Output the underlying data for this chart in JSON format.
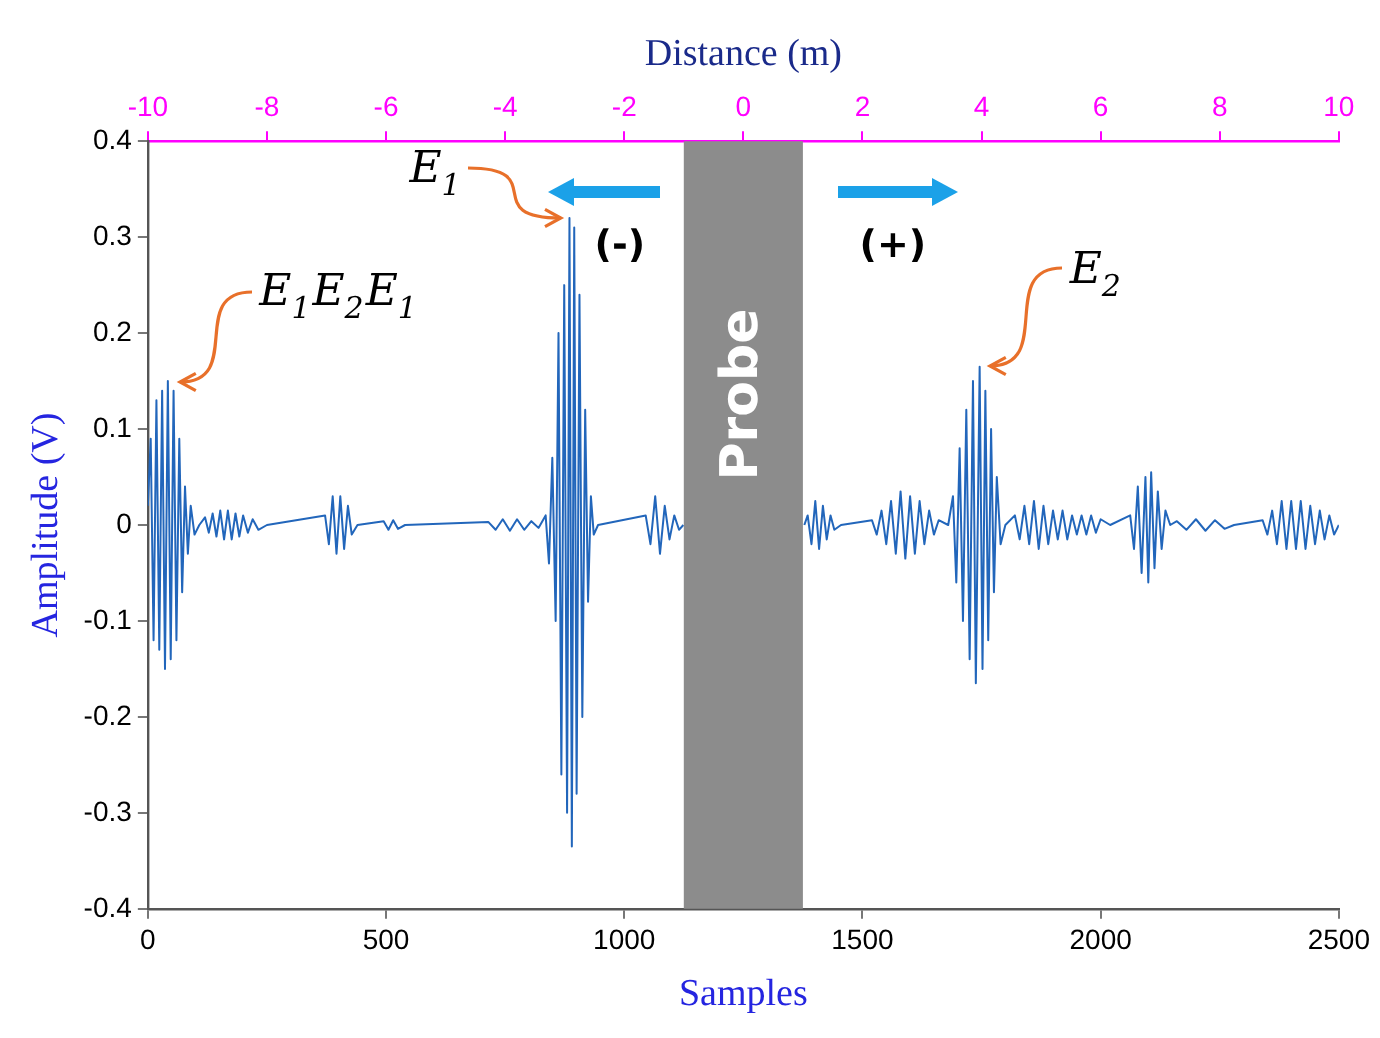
{
  "chart_data": {
    "type": "line",
    "xlabel": "Samples",
    "ylabel": "Amplitude (V)",
    "x2label": "Distance (m)",
    "xlim": [
      0,
      2500
    ],
    "xticks": [
      0,
      500,
      1000,
      1500,
      2000,
      2500
    ],
    "x2lim": [
      -10,
      10
    ],
    "x2ticks": [
      -10,
      -8,
      -6,
      -4,
      -2,
      0,
      2,
      4,
      6,
      8,
      10
    ],
    "ylim": [
      -0.4,
      0.4
    ],
    "yticks": [
      -0.4,
      -0.3,
      -0.2,
      -0.1,
      0,
      0.1,
      0.2,
      0.3,
      0.4
    ],
    "grid": false,
    "legend": false,
    "marker": "none",
    "line_style": "solid",
    "bands": [
      {
        "axis": "x",
        "from": 1125,
        "to": 1375,
        "label": "Probe",
        "color": "#8c8c8c"
      }
    ],
    "annotations": [
      {
        "text": "E$_{1}$E$_{2}$E$_{1}$",
        "x": 45,
        "y": 0.15
      },
      {
        "text": "E$_{1}$",
        "x": 885,
        "y": 0.32
      },
      {
        "text": "E$_{2}$",
        "x": 1746,
        "y": 0.165
      },
      "(-)",
      "(+)"
    ],
    "series": [
      {
        "color": "#2266bb",
        "x": [
          0,
          6,
          12,
          18,
          24,
          30,
          36,
          42,
          48,
          54,
          60,
          66,
          72,
          78,
          84,
          90,
          98,
          108,
          120,
          128,
          136,
          144,
          152,
          160,
          168,
          176,
          184,
          192,
          200,
          210,
          220,
          232,
          250,
          372,
          380,
          388,
          396,
          404,
          412,
          420,
          428,
          440,
          495,
          505,
          515,
          525,
          540,
          715,
          730,
          745,
          760,
          775,
          790,
          805,
          820,
          835,
          842,
          849,
          856,
          862,
          868,
          874,
          880,
          885,
          890,
          895,
          900,
          906,
          912,
          918,
          924,
          930,
          936,
          945,
          1045,
          1055,
          1065,
          1075,
          1085,
          1095,
          1105,
          1115,
          1124,
          1250,
          1378,
          1385,
          1393,
          1401,
          1409,
          1417,
          1425,
          1433,
          1441,
          1455,
          1520,
          1530,
          1540,
          1550,
          1560,
          1570,
          1580,
          1590,
          1600,
          1610,
          1620,
          1630,
          1640,
          1650,
          1660,
          1680,
          1690,
          1697,
          1704,
          1711,
          1718,
          1725,
          1732,
          1738,
          1746,
          1752,
          1758,
          1764,
          1770,
          1776,
          1782,
          1790,
          1800,
          1820,
          1830,
          1840,
          1850,
          1860,
          1870,
          1880,
          1890,
          1900,
          1910,
          1920,
          1930,
          1940,
          1950,
          1960,
          1970,
          1980,
          1990,
          2000,
          2020,
          2062,
          2070,
          2078,
          2086,
          2094,
          2100,
          2106,
          2113,
          2120,
          2128,
          2136,
          2146,
          2160,
          2180,
          2200,
          2220,
          2240,
          2260,
          2280,
          2340,
          2350,
          2360,
          2370,
          2380,
          2390,
          2400,
          2410,
          2420,
          2430,
          2440,
          2450,
          2460,
          2470,
          2480,
          2490,
          2500
        ],
        "values": [
          0.02,
          0.09,
          -0.12,
          0.13,
          -0.13,
          0.14,
          -0.15,
          0.15,
          -0.14,
          0.14,
          -0.12,
          0.09,
          -0.07,
          0.04,
          -0.03,
          0.02,
          -0.01,
          0,
          0.008,
          -0.008,
          0.012,
          -0.012,
          0.015,
          -0.015,
          0.015,
          -0.015,
          0.012,
          -0.012,
          0.01,
          -0.008,
          0.006,
          -0.005,
          0,
          0.01,
          -0.02,
          0.03,
          -0.03,
          0.03,
          -0.025,
          0.02,
          -0.01,
          0,
          0.004,
          -0.005,
          0.005,
          -0.004,
          0,
          0.003,
          -0.005,
          0.006,
          -0.006,
          0.006,
          -0.005,
          0.004,
          -0.003,
          0.01,
          -0.04,
          0.07,
          -0.1,
          0.2,
          -0.26,
          0.25,
          -0.3,
          0.32,
          -0.335,
          0.31,
          -0.28,
          0.24,
          -0.2,
          0.12,
          -0.08,
          0.03,
          -0.01,
          0,
          0.01,
          -0.02,
          0.03,
          -0.03,
          0.02,
          -0.015,
          0.01,
          -0.005,
          0,
          null,
          0,
          0.01,
          -0.02,
          0.025,
          -0.025,
          0.02,
          -0.015,
          0.01,
          -0.005,
          0,
          0.005,
          -0.01,
          0.015,
          -0.02,
          0.025,
          -0.03,
          0.035,
          -0.035,
          0.03,
          -0.03,
          0.025,
          -0.02,
          0.015,
          -0.01,
          0.005,
          0,
          0.03,
          -0.06,
          0.08,
          -0.1,
          0.12,
          -0.14,
          0.15,
          -0.165,
          0.165,
          -0.15,
          0.14,
          -0.12,
          0.1,
          -0.07,
          0.05,
          -0.02,
          0,
          0.01,
          -0.015,
          0.02,
          -0.02,
          0.025,
          -0.025,
          0.02,
          -0.02,
          0.015,
          -0.015,
          0.015,
          -0.015,
          0.01,
          -0.01,
          0.01,
          -0.01,
          0.01,
          -0.008,
          0.006,
          0,
          0.01,
          -0.025,
          0.04,
          -0.05,
          0.05,
          -0.06,
          0.055,
          -0.045,
          0.035,
          -0.025,
          0.015,
          0,
          0.004,
          -0.005,
          0.006,
          -0.006,
          0.005,
          -0.004,
          0,
          0.005,
          -0.01,
          0.015,
          -0.02,
          0.025,
          -0.025,
          0.025,
          -0.025,
          0.025,
          -0.025,
          0.02,
          -0.02,
          0.015,
          -0.015,
          0.01,
          -0.01,
          0
        ]
      }
    ]
  }
}
